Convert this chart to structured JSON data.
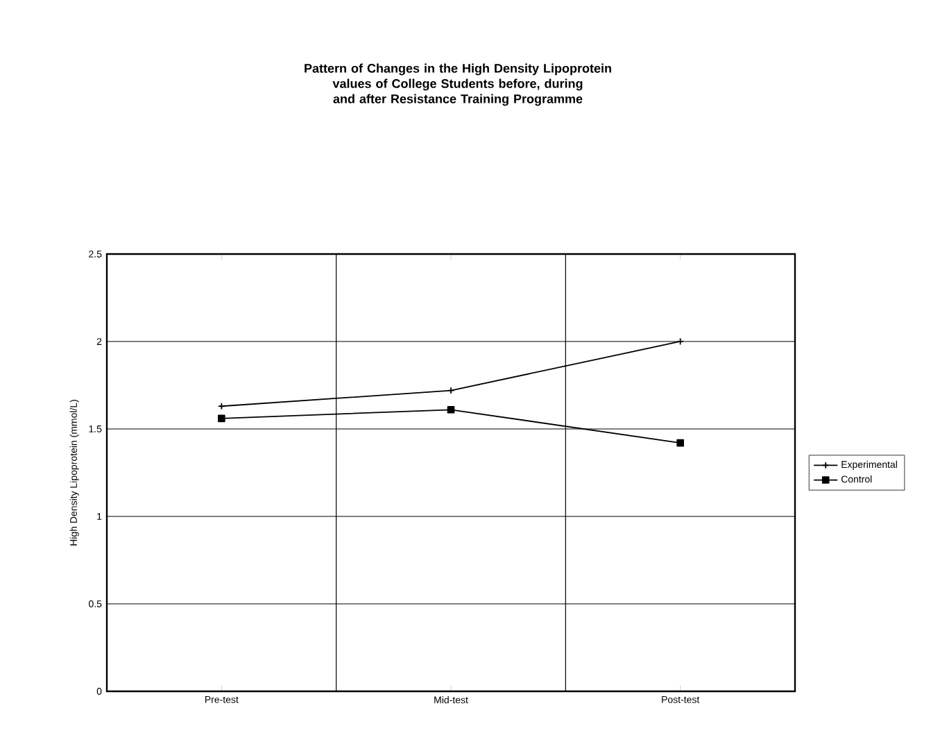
{
  "chart_data": {
    "type": "line",
    "title": "Pattern of Changes in the High Density Lipoprotein values of College Students before, during and after Resistance Training Programme",
    "ylabel": "High Density Lipoprotein (mmol/L)",
    "categories": [
      "Pre-test",
      "Mid-test",
      "Post-test"
    ],
    "series": [
      {
        "name": "Experimental",
        "color": "#000000",
        "marker": "cross",
        "values": [
          1.63,
          1.72,
          2.0
        ]
      },
      {
        "name": "Control",
        "color": "#000000",
        "marker": "square",
        "values": [
          1.56,
          1.61,
          1.42
        ]
      }
    ],
    "ylim": [
      0,
      2.5
    ],
    "yticks": [
      0,
      0.5,
      1,
      1.5,
      2,
      2.5
    ],
    "grid": true,
    "legend": "right",
    "line_style": "solid"
  }
}
